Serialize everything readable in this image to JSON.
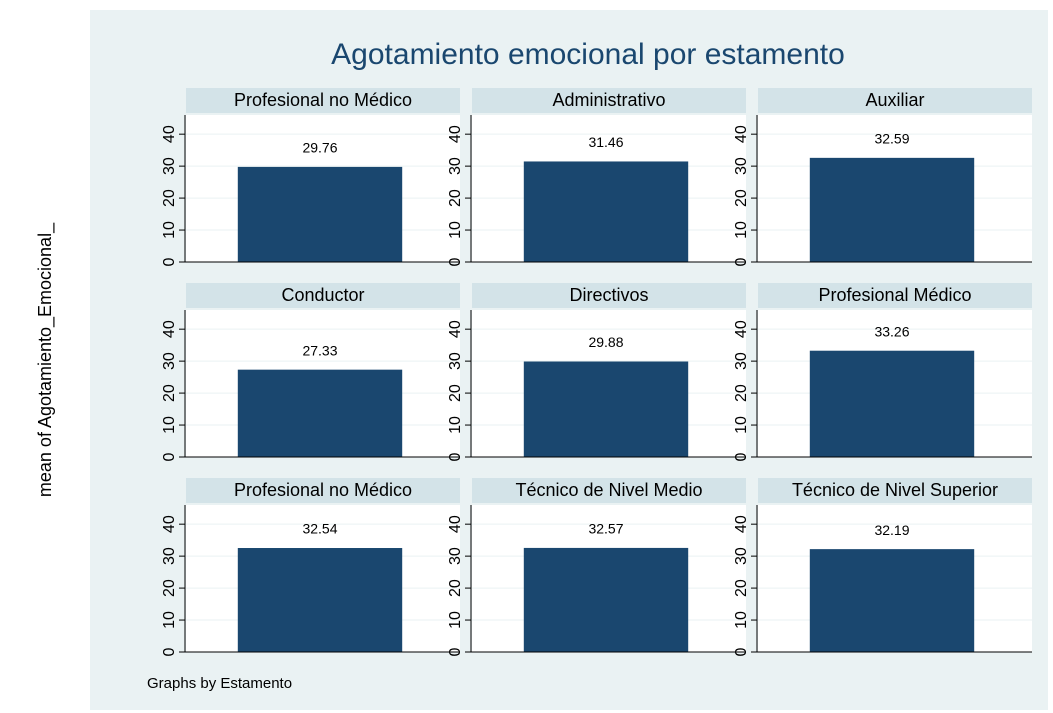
{
  "title": "Agotamiento emocional por estamento",
  "ylabel": "mean of Agotamiento_Emocional_",
  "note": "Graphs by Estamento",
  "chart_data": [
    {
      "type": "bar",
      "title": "Profesional no Médico",
      "values": [
        29.76
      ],
      "color": "#1a476f",
      "ylim": [
        0,
        46
      ],
      "yticks": [
        0,
        10,
        20,
        30,
        40
      ],
      "grid": true
    },
    {
      "type": "bar",
      "title": "Administrativo",
      "values": [
        31.46
      ],
      "color": "#1a476f",
      "ylim": [
        0,
        46
      ],
      "yticks": [
        0,
        10,
        20,
        30,
        40
      ],
      "grid": true
    },
    {
      "type": "bar",
      "title": "Auxiliar",
      "values": [
        32.59
      ],
      "color": "#1a476f",
      "ylim": [
        0,
        46
      ],
      "yticks": [
        0,
        10,
        20,
        30,
        40
      ],
      "grid": true
    },
    {
      "type": "bar",
      "title": "Conductor",
      "values": [
        27.33
      ],
      "color": "#1a476f",
      "ylim": [
        0,
        46
      ],
      "yticks": [
        0,
        10,
        20,
        30,
        40
      ],
      "grid": true
    },
    {
      "type": "bar",
      "title": "Directivos",
      "values": [
        29.88
      ],
      "color": "#1a476f",
      "ylim": [
        0,
        46
      ],
      "yticks": [
        0,
        10,
        20,
        30,
        40
      ],
      "grid": true
    },
    {
      "type": "bar",
      "title": "Profesional Médico",
      "values": [
        33.26
      ],
      "color": "#1a476f",
      "ylim": [
        0,
        46
      ],
      "yticks": [
        0,
        10,
        20,
        30,
        40
      ],
      "grid": true
    },
    {
      "type": "bar",
      "title": "Profesional no Médico",
      "values": [
        32.54
      ],
      "color": "#1a476f",
      "ylim": [
        0,
        46
      ],
      "yticks": [
        0,
        10,
        20,
        30,
        40
      ],
      "grid": true
    },
    {
      "type": "bar",
      "title": "Técnico de Nivel Medio",
      "values": [
        32.57
      ],
      "color": "#1a476f",
      "ylim": [
        0,
        46
      ],
      "yticks": [
        0,
        10,
        20,
        30,
        40
      ],
      "grid": true
    },
    {
      "type": "bar",
      "title": "Técnico de Nivel Superior",
      "values": [
        32.19
      ],
      "color": "#1a476f",
      "ylim": [
        0,
        46
      ],
      "yticks": [
        0,
        10,
        20,
        30,
        40
      ],
      "grid": true
    }
  ]
}
